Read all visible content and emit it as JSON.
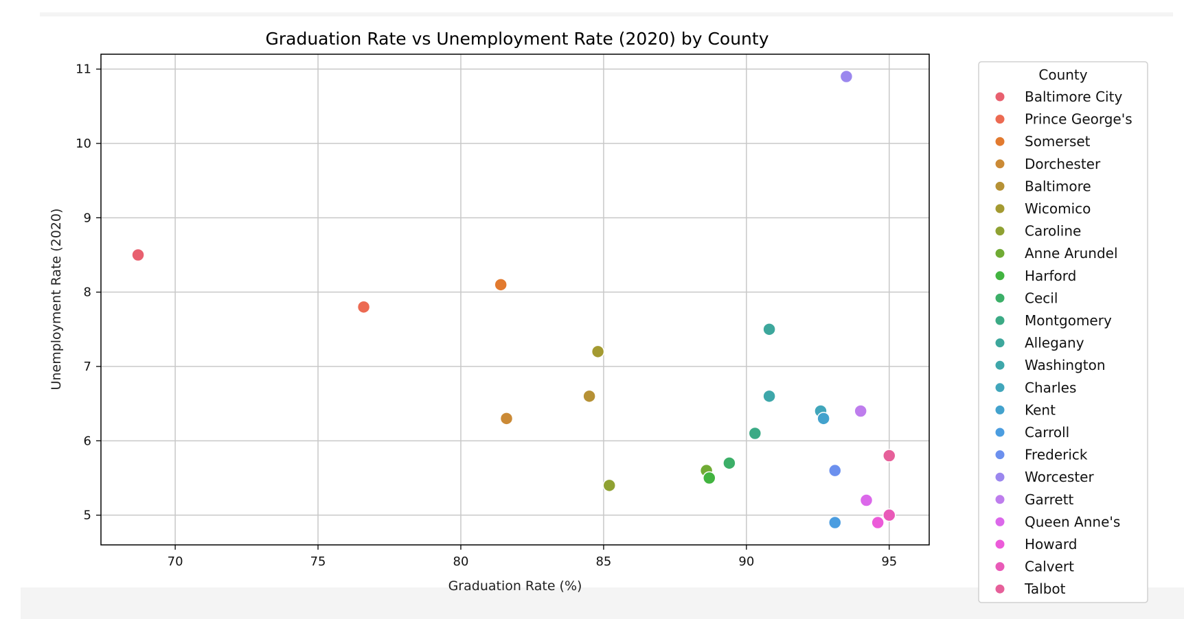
{
  "chart_data": {
    "type": "scatter",
    "title": "Graduation Rate vs Unemployment Rate (2020) by County",
    "xlabel": "Graduation Rate (%)",
    "ylabel": "Unemployment Rate (2020)",
    "xlim": [
      67.4,
      96.4
    ],
    "ylim": [
      4.6,
      11.2
    ],
    "xticks": [
      70,
      75,
      80,
      85,
      90,
      95
    ],
    "yticks": [
      5,
      6,
      7,
      8,
      9,
      10,
      11
    ],
    "grid": true,
    "legend_title": "County",
    "legend_position": "right, outside plot",
    "series": [
      {
        "name": "Baltimore City",
        "color": "#e8606f",
        "points": [
          [
            68.7,
            8.5
          ]
        ]
      },
      {
        "name": "Prince George's",
        "color": "#ec6a52",
        "points": [
          [
            76.6,
            7.8
          ]
        ]
      },
      {
        "name": "Somerset",
        "color": "#e27a2f",
        "points": [
          [
            81.4,
            8.1
          ]
        ]
      },
      {
        "name": "Dorchester",
        "color": "#cb8a36",
        "points": [
          [
            81.6,
            6.3
          ]
        ]
      },
      {
        "name": "Baltimore",
        "color": "#b69135",
        "points": [
          [
            84.5,
            6.6
          ]
        ]
      },
      {
        "name": "Wicomico",
        "color": "#a49a31",
        "points": [
          [
            84.8,
            7.2
          ]
        ]
      },
      {
        "name": "Caroline",
        "color": "#8fa132",
        "points": [
          [
            85.2,
            5.4
          ]
        ]
      },
      {
        "name": "Anne Arundel",
        "color": "#70ab34",
        "points": [
          [
            88.6,
            5.6
          ]
        ]
      },
      {
        "name": "Harford",
        "color": "#42b440",
        "points": [
          [
            88.7,
            5.5
          ]
        ]
      },
      {
        "name": "Cecil",
        "color": "#3caf68",
        "points": [
          [
            89.4,
            5.7
          ]
        ]
      },
      {
        "name": "Montgomery",
        "color": "#3baa85",
        "points": [
          [
            90.3,
            6.1
          ]
        ]
      },
      {
        "name": "Allegany",
        "color": "#3da79c",
        "points": [
          [
            90.8,
            7.5
          ]
        ]
      },
      {
        "name": "Washington",
        "color": "#3ea7aa",
        "points": [
          [
            90.8,
            6.6
          ]
        ]
      },
      {
        "name": "Charles",
        "color": "#41a6bb",
        "points": [
          [
            92.6,
            6.4
          ]
        ]
      },
      {
        "name": "Kent",
        "color": "#43a2cd",
        "points": [
          [
            92.7,
            6.3
          ]
        ]
      },
      {
        "name": "Carroll",
        "color": "#4b9de0",
        "points": [
          [
            93.1,
            4.9
          ]
        ]
      },
      {
        "name": "Frederick",
        "color": "#6c90ee",
        "points": [
          [
            93.1,
            5.6
          ]
        ]
      },
      {
        "name": "Worcester",
        "color": "#9b87ee",
        "points": [
          [
            93.5,
            10.9
          ]
        ]
      },
      {
        "name": "Garrett",
        "color": "#be7ded",
        "points": [
          [
            94.0,
            6.4
          ]
        ]
      },
      {
        "name": "Queen Anne's",
        "color": "#db68ea",
        "points": [
          [
            94.2,
            5.2
          ]
        ]
      },
      {
        "name": "Howard",
        "color": "#ec5bd9",
        "points": [
          [
            94.6,
            4.9
          ]
        ]
      },
      {
        "name": "Calvert",
        "color": "#e95ab8",
        "points": [
          [
            95.0,
            5.0
          ]
        ]
      },
      {
        "name": "Talbot",
        "color": "#e6609a",
        "points": [
          [
            95.0,
            5.8
          ]
        ]
      }
    ]
  }
}
